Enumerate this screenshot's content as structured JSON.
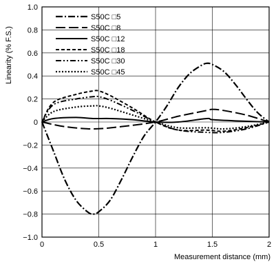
{
  "chart_data": {
    "type": "line",
    "xlabel": "Measurement distance (mm)",
    "ylabel": "Linearity (% F.S.)",
    "xlim": [
      0,
      2
    ],
    "ylim": [
      -1.0,
      1.0
    ],
    "x_ticks": [
      0,
      0.5,
      1,
      1.5,
      2
    ],
    "x_tick_labels": [
      "0",
      "0.5",
      "1",
      "1.5",
      "2"
    ],
    "y_ticks": [
      1.0,
      0.8,
      0.6,
      0.4,
      0.2,
      0,
      -0.2,
      -0.4,
      -0.6,
      -0.8,
      -1.0
    ],
    "y_tick_labels": [
      "1.0",
      "0.8",
      "0.6",
      "0.4",
      "0.2",
      "0",
      "−0.2",
      "−0.4",
      "−0.6",
      "−0.8",
      "−1.0"
    ],
    "grid": true,
    "legend_position": "top-left",
    "series": [
      {
        "name": "S50C □5",
        "dash": "dash-dot",
        "points": [
          [
            0,
            0
          ],
          [
            0.1,
            -0.25
          ],
          [
            0.2,
            -0.5
          ],
          [
            0.3,
            -0.68
          ],
          [
            0.4,
            -0.78
          ],
          [
            0.45,
            -0.8
          ],
          [
            0.5,
            -0.78
          ],
          [
            0.6,
            -0.68
          ],
          [
            0.7,
            -0.5
          ],
          [
            0.8,
            -0.3
          ],
          [
            0.9,
            -0.12
          ],
          [
            1.0,
            0
          ],
          [
            1.1,
            0.14
          ],
          [
            1.2,
            0.3
          ],
          [
            1.3,
            0.42
          ],
          [
            1.4,
            0.49
          ],
          [
            1.45,
            0.51
          ],
          [
            1.5,
            0.5
          ],
          [
            1.6,
            0.44
          ],
          [
            1.7,
            0.33
          ],
          [
            1.8,
            0.2
          ],
          [
            1.9,
            0.08
          ],
          [
            2.0,
            0
          ]
        ]
      },
      {
        "name": "S50C □8",
        "dash": "long-dash",
        "points": [
          [
            0,
            0
          ],
          [
            0.2,
            -0.04
          ],
          [
            0.45,
            -0.06
          ],
          [
            0.7,
            -0.04
          ],
          [
            1.0,
            0
          ],
          [
            1.2,
            0.05
          ],
          [
            1.45,
            0.1
          ],
          [
            1.5,
            0.11
          ],
          [
            1.6,
            0.1
          ],
          [
            1.8,
            0.06
          ],
          [
            2.0,
            0
          ]
        ]
      },
      {
        "name": "S50C □12",
        "dash": "solid",
        "points": [
          [
            0,
            0
          ],
          [
            0.1,
            0.03
          ],
          [
            0.3,
            0.04
          ],
          [
            0.45,
            0.03
          ],
          [
            0.6,
            0.03
          ],
          [
            0.8,
            0.02
          ],
          [
            1.0,
            0
          ],
          [
            1.2,
            0.0
          ],
          [
            1.45,
            0.03
          ],
          [
            1.5,
            0.02
          ],
          [
            1.7,
            0.01
          ],
          [
            2.0,
            0
          ]
        ]
      },
      {
        "name": "S50C □18",
        "dash": "short-dash",
        "points": [
          [
            0,
            0
          ],
          [
            0.1,
            0.17
          ],
          [
            0.3,
            0.24
          ],
          [
            0.45,
            0.27
          ],
          [
            0.5,
            0.27
          ],
          [
            0.6,
            0.23
          ],
          [
            0.8,
            0.12
          ],
          [
            1.0,
            0
          ],
          [
            1.2,
            -0.07
          ],
          [
            1.45,
            -0.07
          ],
          [
            1.6,
            -0.08
          ],
          [
            1.8,
            -0.05
          ],
          [
            2.0,
            0
          ]
        ]
      },
      {
        "name": "S50C □30",
        "dash": "dash-dot-dot",
        "points": [
          [
            0,
            0
          ],
          [
            0.1,
            0.15
          ],
          [
            0.3,
            0.2
          ],
          [
            0.45,
            0.22
          ],
          [
            0.5,
            0.22
          ],
          [
            0.6,
            0.19
          ],
          [
            0.8,
            0.1
          ],
          [
            1.0,
            0
          ],
          [
            1.2,
            -0.07
          ],
          [
            1.45,
            -0.09
          ],
          [
            1.6,
            -0.09
          ],
          [
            1.8,
            -0.06
          ],
          [
            2.0,
            0
          ]
        ]
      },
      {
        "name": "S50C □45",
        "dash": "dotted",
        "points": [
          [
            0,
            0
          ],
          [
            0.1,
            0.09
          ],
          [
            0.3,
            0.13
          ],
          [
            0.45,
            0.14
          ],
          [
            0.5,
            0.14
          ],
          [
            0.6,
            0.12
          ],
          [
            0.8,
            0.06
          ],
          [
            1.0,
            0
          ],
          [
            1.2,
            -0.05
          ],
          [
            1.45,
            -0.05
          ],
          [
            1.6,
            -0.06
          ],
          [
            1.8,
            -0.04
          ],
          [
            2.0,
            0
          ]
        ]
      }
    ]
  }
}
